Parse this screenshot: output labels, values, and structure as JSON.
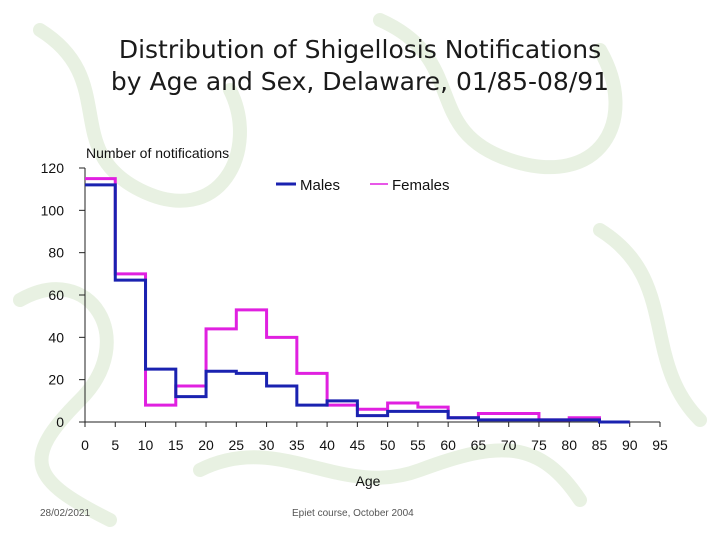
{
  "slide": {
    "title_line1": "Distribution of Shigellosis Notifications",
    "title_line2": "by Age and Sex, Delaware, 01/85-08/91",
    "footer_date": "28/02/2021",
    "footer_course": "Epiet course, October 2004"
  },
  "colors": {
    "males": "#1a22b0",
    "females": "#e020e0",
    "axis": "#222222",
    "pattern": "#e6f0e0"
  },
  "chart_data": {
    "type": "line",
    "step": true,
    "xlabel": "Age",
    "ylabel": "Number of notifications",
    "xlim": [
      0,
      95
    ],
    "ylim": [
      0,
      120
    ],
    "x_ticks": [
      0,
      5,
      10,
      15,
      20,
      25,
      30,
      35,
      40,
      45,
      50,
      55,
      60,
      65,
      70,
      75,
      80,
      85,
      90,
      95
    ],
    "y_ticks": [
      0,
      20,
      40,
      60,
      80,
      100,
      120
    ],
    "age_bins": [
      0,
      5,
      10,
      15,
      20,
      25,
      30,
      35,
      40,
      45,
      50,
      55,
      60,
      65,
      70,
      75,
      80,
      85
    ],
    "series": [
      {
        "name": "Males",
        "values": [
          112,
          67,
          25,
          12,
          24,
          23,
          17,
          8,
          10,
          3,
          5,
          5,
          2,
          1,
          1,
          1,
          1,
          0
        ]
      },
      {
        "name": "Females",
        "values": [
          115,
          70,
          8,
          17,
          44,
          53,
          40,
          23,
          8,
          6,
          9,
          7,
          2,
          4,
          4,
          1,
          2,
          0
        ]
      }
    ],
    "legend_placement": "top-right"
  }
}
